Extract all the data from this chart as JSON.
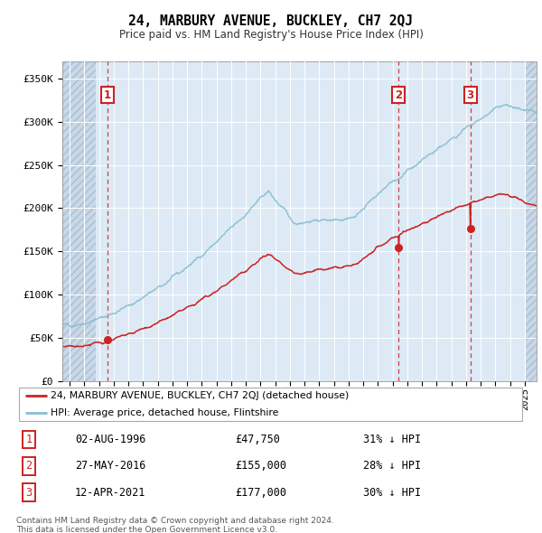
{
  "title": "24, MARBURY AVENUE, BUCKLEY, CH7 2QJ",
  "subtitle": "Price paid vs. HM Land Registry's House Price Index (HPI)",
  "legend_line1": "24, MARBURY AVENUE, BUCKLEY, CH7 2QJ (detached house)",
  "legend_line2": "HPI: Average price, detached house, Flintshire",
  "footer1": "Contains HM Land Registry data © Crown copyright and database right 2024.",
  "footer2": "This data is licensed under the Open Government Licence v3.0.",
  "sale_points": [
    {
      "num": 1,
      "date": "02-AUG-1996",
      "price": 47750,
      "year": 1996.58,
      "pct": "31% ↓ HPI"
    },
    {
      "num": 2,
      "date": "27-MAY-2016",
      "price": 155000,
      "year": 2016.41,
      "pct": "28% ↓ HPI"
    },
    {
      "num": 3,
      "date": "12-APR-2021",
      "price": 177000,
      "year": 2021.28,
      "pct": "30% ↓ HPI"
    }
  ],
  "hpi_color": "#89bdd3",
  "price_color": "#cc2222",
  "vline_color": "#cc2222",
  "bg_color": "#ddeaf5",
  "hatch_bg": "#c8d8e8",
  "ylim": [
    0,
    370000
  ],
  "xlim_start": 1993.5,
  "xlim_end": 2025.8
}
